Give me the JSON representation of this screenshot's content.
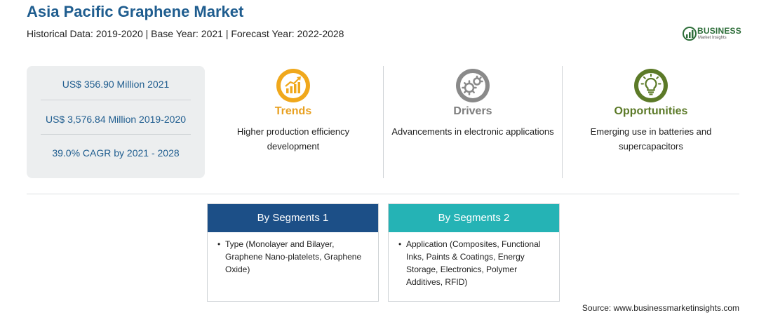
{
  "header": {
    "title": "Asia Pacific Graphene Market",
    "subtitle": "Historical Data: 2019-2020 | Base Year: 2021 | Forecast Year: 2022-2028"
  },
  "logo": {
    "brand": "BUSINESS",
    "sub": "Market Insights"
  },
  "stats": [
    "US$ 356.90 Million 2021",
    "US$ 3,576.84 Million 2019-2020",
    "39.0% CAGR by 2021 - 2028"
  ],
  "columns": {
    "trends": {
      "title": "Trends",
      "desc": "Higher production efficiency development",
      "icon": "rising-chart-icon",
      "color": "#e8a020"
    },
    "drivers": {
      "title": "Drivers",
      "desc": "Advancements in electronic applications",
      "icon": "gears-icon",
      "color": "#7c7c7c"
    },
    "opportunities": {
      "title": "Opportunities",
      "desc": "Emerging use in batteries and supercapacitors",
      "icon": "lightbulb-icon",
      "color": "#5c7a28"
    }
  },
  "segments": [
    {
      "title": "By Segments 1",
      "bullet": "•",
      "text": "Type (Monolayer and Bilayer, Graphene Nano-platelets, Graphene Oxide)",
      "color": "#1c4f87"
    },
    {
      "title": "By Segments 2",
      "bullet": "•",
      "text": "Application (Composites, Functional Inks, Paints & Coatings, Energy Storage, Electronics, Polymer Additives, RFID)",
      "color": "#25b3b5"
    }
  ],
  "source": "Source: www.businessmarketinsights.com"
}
